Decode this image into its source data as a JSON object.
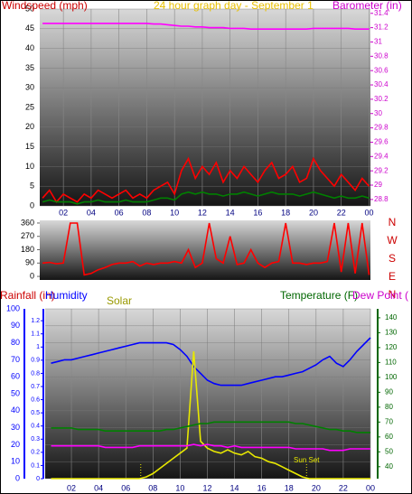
{
  "chart_data": [
    {
      "type": "line",
      "title": "24 hour graph day - September 1",
      "ylabel": "Windspeed (mph)",
      "y2label": "Barometer (in)",
      "ycolor": "#cc0000",
      "y2color": "#cc00cc",
      "grid": true,
      "xlim": [
        0.3,
        24.1
      ],
      "xticks": [
        {
          "value": 2,
          "label": "02"
        },
        {
          "value": 4,
          "label": "04"
        },
        {
          "value": 6,
          "label": "06"
        },
        {
          "value": 8,
          "label": "08"
        },
        10,
        12,
        14,
        16,
        18,
        20,
        22,
        {
          "value": 24,
          "label": "00"
        }
      ],
      "ylim": [
        0,
        50
      ],
      "yticks": [
        0,
        5,
        10,
        15,
        20,
        25,
        30,
        35,
        40,
        45,
        50
      ],
      "y2lim": [
        28.71,
        31.46
      ],
      "y2ticks": [
        28.8,
        29,
        29.2,
        29.4,
        29.6,
        29.8,
        30,
        30.2,
        30.4,
        30.6,
        30.8,
        31,
        31.2,
        31.4
      ],
      "x": [
        0.5,
        1,
        1.5,
        2,
        2.5,
        3,
        3.5,
        4,
        4.5,
        5,
        5.5,
        6,
        6.5,
        7,
        7.5,
        8,
        8.5,
        9,
        9.5,
        10,
        10.5,
        11,
        11.5,
        12,
        12.5,
        13,
        13.5,
        14,
        14.5,
        15,
        15.5,
        16,
        16.5,
        17,
        17.5,
        18,
        18.5,
        19,
        19.5,
        20,
        20.5,
        21,
        21.5,
        22,
        22.5,
        23,
        23.5,
        24
      ],
      "series": [
        {
          "color": "#ff0000",
          "values": [
            2,
            4,
            1,
            3,
            2,
            1,
            3,
            2,
            4,
            3,
            2,
            3,
            4,
            2,
            3,
            2,
            4,
            5,
            6,
            3,
            9,
            12,
            7,
            10,
            8,
            11,
            6,
            9,
            7,
            10,
            8,
            6,
            9,
            11,
            7,
            8,
            10,
            6,
            7,
            12,
            9,
            7,
            5,
            8,
            6,
            4,
            7,
            5
          ]
        },
        {
          "color": "#008000",
          "values": [
            1,
            1.5,
            1,
            1,
            1,
            0.5,
            1,
            1,
            1.5,
            1,
            1,
            1,
            1.5,
            1,
            1,
            1,
            1.5,
            2,
            2,
            1.5,
            3,
            3.5,
            3,
            3.5,
            3,
            3,
            2.5,
            3,
            3,
            3.5,
            3,
            2.5,
            3,
            3.5,
            3,
            3,
            3,
            2.5,
            3,
            3.5,
            3,
            2.5,
            2,
            2.5,
            2,
            2,
            2.5,
            2
          ]
        },
        {
          "color": "#ff00ff",
          "axis": "y2",
          "values": [
            31.26,
            31.26,
            31.26,
            31.26,
            31.26,
            31.26,
            31.26,
            31.26,
            31.26,
            31.26,
            31.26,
            31.26,
            31.26,
            31.26,
            31.26,
            31.26,
            31.25,
            31.25,
            31.24,
            31.23,
            31.22,
            31.22,
            31.21,
            31.21,
            31.2,
            31.2,
            31.2,
            31.19,
            31.19,
            31.19,
            31.18,
            31.18,
            31.18,
            31.18,
            31.18,
            31.18,
            31.18,
            31.18,
            31.18,
            31.19,
            31.19,
            31.19,
            31.19,
            31.19,
            31.19,
            31.18,
            31.18,
            31.18
          ]
        }
      ]
    },
    {
      "type": "line",
      "ycolor": "#cc0000",
      "xlim": [
        0.3,
        24.1
      ],
      "ylim": [
        -24,
        378
      ],
      "yticks": [
        0,
        90,
        180,
        270,
        360
      ],
      "direction_labels": [
        "N",
        "W",
        "S",
        "E",
        "N"
      ],
      "x": [
        0.5,
        1,
        1.5,
        2,
        2.5,
        3,
        3.5,
        4,
        4.5,
        5,
        5.5,
        6,
        6.5,
        7,
        7.5,
        8,
        8.5,
        9,
        9.5,
        10,
        10.5,
        11,
        11.5,
        12,
        12.5,
        13,
        13.5,
        14,
        14.5,
        15,
        15.5,
        16,
        16.5,
        17,
        17.5,
        18,
        18.5,
        19,
        19.5,
        20,
        20.5,
        21,
        21.5,
        22,
        22.5,
        23,
        23.5,
        24
      ],
      "series": [
        {
          "color": "#ff0000",
          "values": [
            90,
            95,
            85,
            90,
            360,
            360,
            10,
            20,
            45,
            60,
            80,
            90,
            90,
            100,
            70,
            90,
            80,
            90,
            90,
            100,
            90,
            180,
            60,
            90,
            360,
            120,
            90,
            270,
            80,
            90,
            180,
            90,
            60,
            90,
            100,
            360,
            90,
            90,
            80,
            90,
            90,
            100,
            360,
            30,
            360,
            20,
            360,
            10
          ]
        }
      ]
    },
    {
      "type": "line",
      "y3label": "Rainfall (in)",
      "ycolor": "#0000ff",
      "y2color": "#006600",
      "y3color": "#0000ff",
      "grid": true,
      "xlim": [
        0.07,
        24
      ],
      "xticks": [
        {
          "value": 2,
          "label": "02"
        },
        {
          "value": 4,
          "label": "04"
        },
        {
          "value": 6,
          "label": "06"
        },
        {
          "value": 8,
          "label": "08"
        },
        10,
        12,
        14,
        16,
        18,
        20,
        22,
        {
          "value": 24,
          "label": "00"
        }
      ],
      "ylim": [
        0,
        100
      ],
      "yticks": [
        0,
        10,
        20,
        30,
        40,
        50,
        60,
        70,
        80,
        90,
        100
      ],
      "y2lim": [
        32,
        146
      ],
      "y2ticks": [
        40,
        50,
        60,
        70,
        80,
        90,
        100,
        110,
        120,
        130,
        140
      ],
      "y3lim": [
        0,
        1.29
      ],
      "y3ticks": [
        0,
        0.1,
        0.2,
        0.3,
        0.4,
        0.5,
        0.6,
        0.7,
        0.8,
        0.9,
        1,
        1.1,
        1.2
      ],
      "x": [
        0.5,
        1,
        1.5,
        2,
        2.5,
        3,
        3.5,
        4,
        4.5,
        5,
        5.5,
        6,
        6.5,
        7,
        7.5,
        8,
        8.5,
        9,
        9.5,
        10,
        10.5,
        11,
        11.5,
        12,
        12.5,
        13,
        13.5,
        14,
        14.5,
        15,
        15.5,
        16,
        16.5,
        17,
        17.5,
        18,
        18.5,
        19,
        19.5,
        20,
        20.5,
        21,
        21.5,
        22,
        22.5,
        23,
        23.5,
        24
      ],
      "series": [
        {
          "name": "Humidity",
          "color": "#0000ff",
          "values": [
            68,
            69,
            70,
            70,
            71,
            72,
            73,
            74,
            75,
            76,
            77,
            78,
            79,
            80,
            80,
            80,
            80,
            80,
            79,
            76,
            72,
            66,
            62,
            58,
            56,
            55,
            55,
            55,
            55,
            56,
            57,
            58,
            59,
            60,
            60,
            61,
            62,
            63,
            65,
            67,
            70,
            72,
            68,
            66,
            70,
            75,
            79,
            83
          ]
        },
        {
          "name": "Solar",
          "color": "#e8e800",
          "labelcolor": "#999900",
          "values": [
            0,
            0,
            0,
            0,
            0,
            0,
            0,
            0,
            0,
            0,
            0,
            0,
            0,
            0,
            1,
            3,
            6,
            9,
            12,
            15,
            18,
            75,
            22,
            18,
            16,
            15,
            17,
            15,
            14,
            16,
            13,
            12,
            10,
            9,
            7,
            5,
            3,
            1,
            0,
            0,
            0,
            0,
            0,
            0,
            0,
            0,
            0,
            0
          ]
        },
        {
          "name": "Temperature (F)",
          "color": "#008000",
          "labelcolor": "#006600",
          "axis": "y2",
          "values": [
            66,
            66,
            66,
            66,
            65,
            65,
            65,
            65,
            64,
            64,
            64,
            64,
            64,
            64,
            64,
            64,
            64,
            65,
            65,
            66,
            67,
            68,
            69,
            69,
            70,
            70,
            70,
            70,
            70,
            70,
            70,
            70,
            70,
            70,
            70,
            70,
            69,
            69,
            68,
            67,
            66,
            65,
            65,
            64,
            64,
            63,
            63,
            63
          ]
        },
        {
          "name": "Dew Point (",
          "color": "#ff00ff",
          "labelcolor": "#cc00cc",
          "axis": "y2",
          "values": [
            54,
            54,
            54,
            54,
            54,
            54,
            54,
            54,
            53,
            53,
            53,
            53,
            53,
            54,
            54,
            54,
            54,
            54,
            54,
            54,
            54,
            55,
            54,
            55,
            54,
            54,
            53,
            54,
            53,
            53,
            53,
            53,
            53,
            53,
            53,
            53,
            52,
            52,
            52,
            52,
            52,
            51,
            51,
            51,
            52,
            52,
            52,
            52
          ]
        }
      ],
      "events": [
        {
          "x": 7.1
        },
        {
          "x": 19.3,
          "label": "Sun Set"
        }
      ]
    }
  ]
}
